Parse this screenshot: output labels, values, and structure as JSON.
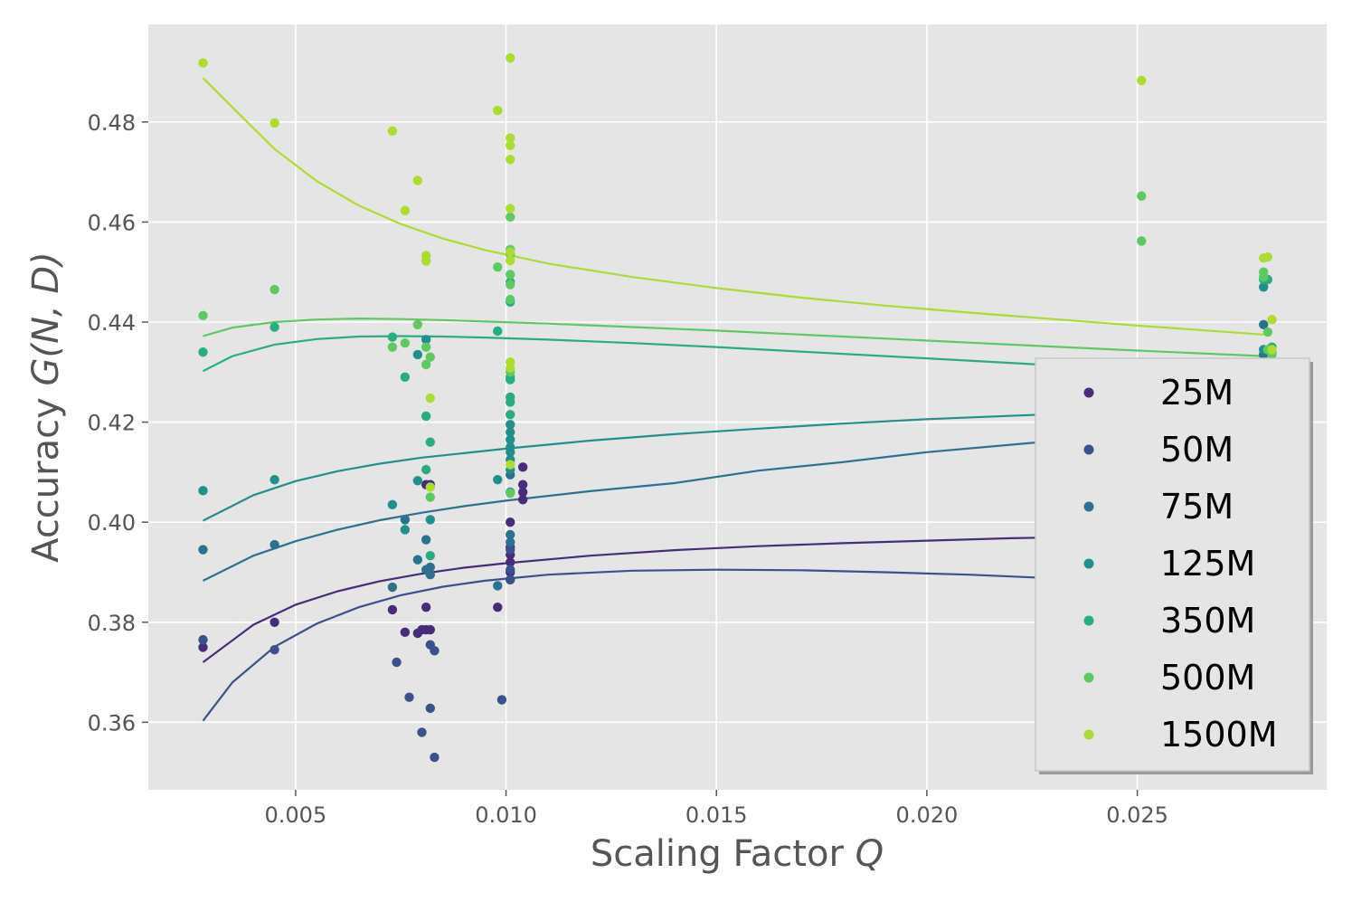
{
  "chart_data": {
    "type": "scatter",
    "title": "",
    "xlabel": "Scaling Factor",
    "xlabel_symbol": "Q",
    "ylabel": "Accuracy",
    "ylabel_symbol": "G(N, D)",
    "xlim": [
      0.0015,
      0.0295
    ],
    "ylim": [
      0.3465,
      0.4995
    ],
    "xticks": [
      0.005,
      0.01,
      0.015,
      0.02,
      0.025
    ],
    "xtick_labels": [
      "0.005",
      "0.010",
      "0.015",
      "0.020",
      "0.025"
    ],
    "yticks": [
      0.36,
      0.38,
      0.4,
      0.42,
      0.44,
      0.46,
      0.48
    ],
    "ytick_labels": [
      "0.36",
      "0.38",
      "0.40",
      "0.42",
      "0.44",
      "0.46",
      "0.48"
    ],
    "grid": true,
    "legend_position": "lower-right",
    "series": [
      {
        "name": "25M",
        "color": "#472c7a",
        "points": [
          [
            0.0028,
            0.375
          ],
          [
            0.0045,
            0.38
          ],
          [
            0.0073,
            0.3825
          ],
          [
            0.0076,
            0.378
          ],
          [
            0.0079,
            0.3778
          ],
          [
            0.008,
            0.3785
          ],
          [
            0.0081,
            0.383
          ],
          [
            0.0081,
            0.3785
          ],
          [
            0.0082,
            0.3785
          ],
          [
            0.0081,
            0.4075
          ],
          [
            0.0082,
            0.4075
          ],
          [
            0.0098,
            0.383
          ],
          [
            0.0101,
            0.4
          ],
          [
            0.0101,
            0.395
          ],
          [
            0.0101,
            0.3935
          ],
          [
            0.0101,
            0.392
          ],
          [
            0.0101,
            0.39
          ],
          [
            0.0101,
            0.3885
          ],
          [
            0.0104,
            0.411
          ],
          [
            0.0104,
            0.4075
          ],
          [
            0.0104,
            0.406
          ],
          [
            0.0104,
            0.4045
          ]
        ],
        "curve": [
          [
            0.0028,
            0.372
          ],
          [
            0.004,
            0.3795
          ],
          [
            0.005,
            0.3835
          ],
          [
            0.006,
            0.3862
          ],
          [
            0.007,
            0.3882
          ],
          [
            0.008,
            0.3897
          ],
          [
            0.009,
            0.3909
          ],
          [
            0.01,
            0.3918
          ],
          [
            0.012,
            0.3933
          ],
          [
            0.014,
            0.3944
          ],
          [
            0.016,
            0.3952
          ],
          [
            0.018,
            0.3958
          ],
          [
            0.02,
            0.3963
          ],
          [
            0.022,
            0.3968
          ],
          [
            0.0227,
            0.3969
          ]
        ]
      },
      {
        "name": "50M",
        "color": "#3b518b",
        "points": [
          [
            0.0028,
            0.3765
          ],
          [
            0.0045,
            0.3745
          ],
          [
            0.0074,
            0.372
          ],
          [
            0.0077,
            0.365
          ],
          [
            0.008,
            0.358
          ],
          [
            0.0082,
            0.3628
          ],
          [
            0.0082,
            0.3755
          ],
          [
            0.0083,
            0.3743
          ],
          [
            0.0083,
            0.353
          ],
          [
            0.0099,
            0.3645
          ],
          [
            0.0101,
            0.3945
          ],
          [
            0.0101,
            0.3905
          ],
          [
            0.0101,
            0.3885
          ]
        ],
        "curve": [
          [
            0.0028,
            0.3603
          ],
          [
            0.0035,
            0.368
          ],
          [
            0.0045,
            0.3751
          ],
          [
            0.0055,
            0.3797
          ],
          [
            0.0065,
            0.383
          ],
          [
            0.0075,
            0.3854
          ],
          [
            0.0085,
            0.3871
          ],
          [
            0.0095,
            0.3883
          ],
          [
            0.011,
            0.3895
          ],
          [
            0.013,
            0.3903
          ],
          [
            0.015,
            0.3905
          ],
          [
            0.017,
            0.3904
          ],
          [
            0.019,
            0.39
          ],
          [
            0.021,
            0.3895
          ],
          [
            0.0227,
            0.3889
          ]
        ]
      },
      {
        "name": "75M",
        "color": "#2c718e",
        "points": [
          [
            0.0028,
            0.3945
          ],
          [
            0.0045,
            0.3955
          ],
          [
            0.0073,
            0.387
          ],
          [
            0.0076,
            0.4005
          ],
          [
            0.0079,
            0.3925
          ],
          [
            0.0081,
            0.3965
          ],
          [
            0.0081,
            0.3905
          ],
          [
            0.0082,
            0.3895
          ],
          [
            0.0082,
            0.391
          ],
          [
            0.0098,
            0.3873
          ],
          [
            0.0101,
            0.3975
          ],
          [
            0.0101,
            0.396
          ],
          [
            0.0101,
            0.4095
          ],
          [
            0.028,
            0.4395
          ],
          [
            0.028,
            0.4335
          ]
        ],
        "curve": [
          [
            0.0028,
            0.3883
          ],
          [
            0.004,
            0.3933
          ],
          [
            0.005,
            0.3962
          ],
          [
            0.006,
            0.3985
          ],
          [
            0.007,
            0.4004
          ],
          [
            0.008,
            0.4019
          ],
          [
            0.009,
            0.4032
          ],
          [
            0.01,
            0.4043
          ],
          [
            0.012,
            0.4062
          ],
          [
            0.014,
            0.4078
          ],
          [
            0.016,
            0.4103
          ],
          [
            0.018,
            0.412
          ],
          [
            0.02,
            0.414
          ],
          [
            0.0227,
            0.416
          ]
        ]
      },
      {
        "name": "125M",
        "color": "#21908d",
        "points": [
          [
            0.0028,
            0.4063
          ],
          [
            0.0045,
            0.4085
          ],
          [
            0.0073,
            0.4035
          ],
          [
            0.0076,
            0.3985
          ],
          [
            0.0079,
            0.4083
          ],
          [
            0.0079,
            0.4335
          ],
          [
            0.0081,
            0.4365
          ],
          [
            0.0082,
            0.4005
          ],
          [
            0.0098,
            0.4085
          ],
          [
            0.0101,
            0.4195
          ],
          [
            0.0101,
            0.418
          ],
          [
            0.0101,
            0.4165
          ],
          [
            0.0101,
            0.415
          ],
          [
            0.0101,
            0.414
          ],
          [
            0.0101,
            0.4125
          ],
          [
            0.0101,
            0.4105
          ],
          [
            0.0101,
            0.406
          ],
          [
            0.028,
            0.447
          ],
          [
            0.028,
            0.4345
          ]
        ],
        "curve": [
          [
            0.0028,
            0.4003
          ],
          [
            0.004,
            0.4054
          ],
          [
            0.005,
            0.4082
          ],
          [
            0.006,
            0.4102
          ],
          [
            0.007,
            0.4117
          ],
          [
            0.008,
            0.4129
          ],
          [
            0.009,
            0.4138
          ],
          [
            0.01,
            0.4147
          ],
          [
            0.012,
            0.4163
          ],
          [
            0.014,
            0.4176
          ],
          [
            0.016,
            0.4187
          ],
          [
            0.018,
            0.4197
          ],
          [
            0.02,
            0.4206
          ],
          [
            0.0227,
            0.4215
          ]
        ]
      },
      {
        "name": "350M",
        "color": "#27ad81",
        "points": [
          [
            0.0028,
            0.434
          ],
          [
            0.0045,
            0.439
          ],
          [
            0.0073,
            0.437
          ],
          [
            0.0076,
            0.429
          ],
          [
            0.0081,
            0.4212
          ],
          [
            0.0081,
            0.4105
          ],
          [
            0.0082,
            0.416
          ],
          [
            0.0082,
            0.3933
          ],
          [
            0.0098,
            0.4382
          ],
          [
            0.0101,
            0.429
          ],
          [
            0.0101,
            0.4285
          ],
          [
            0.0101,
            0.425
          ],
          [
            0.0101,
            0.424
          ],
          [
            0.0101,
            0.4215
          ],
          [
            0.0101,
            0.448
          ],
          [
            0.0101,
            0.444
          ],
          [
            0.028,
            0.4485
          ],
          [
            0.0281,
            0.4485
          ],
          [
            0.0282,
            0.435
          ],
          [
            0.0282,
            0.434
          ]
        ],
        "curve": [
          [
            0.0028,
            0.4302
          ],
          [
            0.0035,
            0.4332
          ],
          [
            0.0045,
            0.4355
          ],
          [
            0.0055,
            0.4366
          ],
          [
            0.0065,
            0.4371
          ],
          [
            0.0075,
            0.4372
          ],
          [
            0.0085,
            0.4371
          ],
          [
            0.0095,
            0.4369
          ],
          [
            0.011,
            0.4365
          ],
          [
            0.013,
            0.4358
          ],
          [
            0.015,
            0.435
          ],
          [
            0.017,
            0.4341
          ],
          [
            0.019,
            0.4332
          ],
          [
            0.021,
            0.4323
          ],
          [
            0.0227,
            0.4315
          ]
        ]
      },
      {
        "name": "500M",
        "color": "#5ec962",
        "points": [
          [
            0.0028,
            0.4413
          ],
          [
            0.0045,
            0.4465
          ],
          [
            0.0073,
            0.435
          ],
          [
            0.0076,
            0.4358
          ],
          [
            0.0079,
            0.4395
          ],
          [
            0.0081,
            0.435
          ],
          [
            0.0081,
            0.4315
          ],
          [
            0.0082,
            0.433
          ],
          [
            0.0082,
            0.405
          ],
          [
            0.0098,
            0.451
          ],
          [
            0.0101,
            0.461
          ],
          [
            0.0101,
            0.4545
          ],
          [
            0.0101,
            0.4535
          ],
          [
            0.0101,
            0.4495
          ],
          [
            0.0101,
            0.4475
          ],
          [
            0.0101,
            0.4445
          ],
          [
            0.0101,
            0.43
          ],
          [
            0.0101,
            0.4058
          ],
          [
            0.0251,
            0.4652
          ],
          [
            0.0251,
            0.4562
          ],
          [
            0.028,
            0.45
          ],
          [
            0.028,
            0.449
          ],
          [
            0.0281,
            0.438
          ],
          [
            0.0281,
            0.4345
          ],
          [
            0.0282,
            0.4335
          ]
        ],
        "curve": [
          [
            0.0028,
            0.4372
          ],
          [
            0.0035,
            0.4389
          ],
          [
            0.0045,
            0.44
          ],
          [
            0.0055,
            0.4405
          ],
          [
            0.0065,
            0.4407
          ],
          [
            0.0075,
            0.4406
          ],
          [
            0.0085,
            0.4404
          ],
          [
            0.0095,
            0.4401
          ],
          [
            0.011,
            0.4397
          ],
          [
            0.013,
            0.439
          ],
          [
            0.015,
            0.4383
          ],
          [
            0.017,
            0.4375
          ],
          [
            0.019,
            0.4367
          ],
          [
            0.021,
            0.4359
          ],
          [
            0.023,
            0.4351
          ],
          [
            0.025,
            0.4343
          ],
          [
            0.028,
            0.4332
          ]
        ]
      },
      {
        "name": "1500M",
        "color": "#addc30",
        "points": [
          [
            0.0028,
            0.4918
          ],
          [
            0.0045,
            0.4798
          ],
          [
            0.0073,
            0.4782
          ],
          [
            0.0076,
            0.4623
          ],
          [
            0.0079,
            0.4683
          ],
          [
            0.0081,
            0.4533
          ],
          [
            0.0081,
            0.4522
          ],
          [
            0.0082,
            0.4248
          ],
          [
            0.0082,
            0.407
          ],
          [
            0.0098,
            0.4823
          ],
          [
            0.0101,
            0.4928
          ],
          [
            0.0101,
            0.4768
          ],
          [
            0.0101,
            0.4753
          ],
          [
            0.0101,
            0.4725
          ],
          [
            0.0101,
            0.4627
          ],
          [
            0.0101,
            0.454
          ],
          [
            0.0101,
            0.4523
          ],
          [
            0.0101,
            0.432
          ],
          [
            0.0101,
            0.4308
          ],
          [
            0.0101,
            0.4115
          ],
          [
            0.0251,
            0.4883
          ],
          [
            0.028,
            0.4528
          ],
          [
            0.0281,
            0.453
          ],
          [
            0.0282,
            0.4405
          ],
          [
            0.0282,
            0.4345
          ]
        ],
        "curve": [
          [
            0.0028,
            0.4888
          ],
          [
            0.0035,
            0.4829
          ],
          [
            0.0045,
            0.4746
          ],
          [
            0.0055,
            0.4682
          ],
          [
            0.0065,
            0.4633
          ],
          [
            0.0075,
            0.4596
          ],
          [
            0.0085,
            0.4567
          ],
          [
            0.0095,
            0.4544
          ],
          [
            0.011,
            0.4517
          ],
          [
            0.013,
            0.449
          ],
          [
            0.015,
            0.4468
          ],
          [
            0.017,
            0.4449
          ],
          [
            0.019,
            0.4433
          ],
          [
            0.021,
            0.4419
          ],
          [
            0.023,
            0.4406
          ],
          [
            0.025,
            0.4393
          ],
          [
            0.028,
            0.4375
          ]
        ]
      }
    ]
  }
}
